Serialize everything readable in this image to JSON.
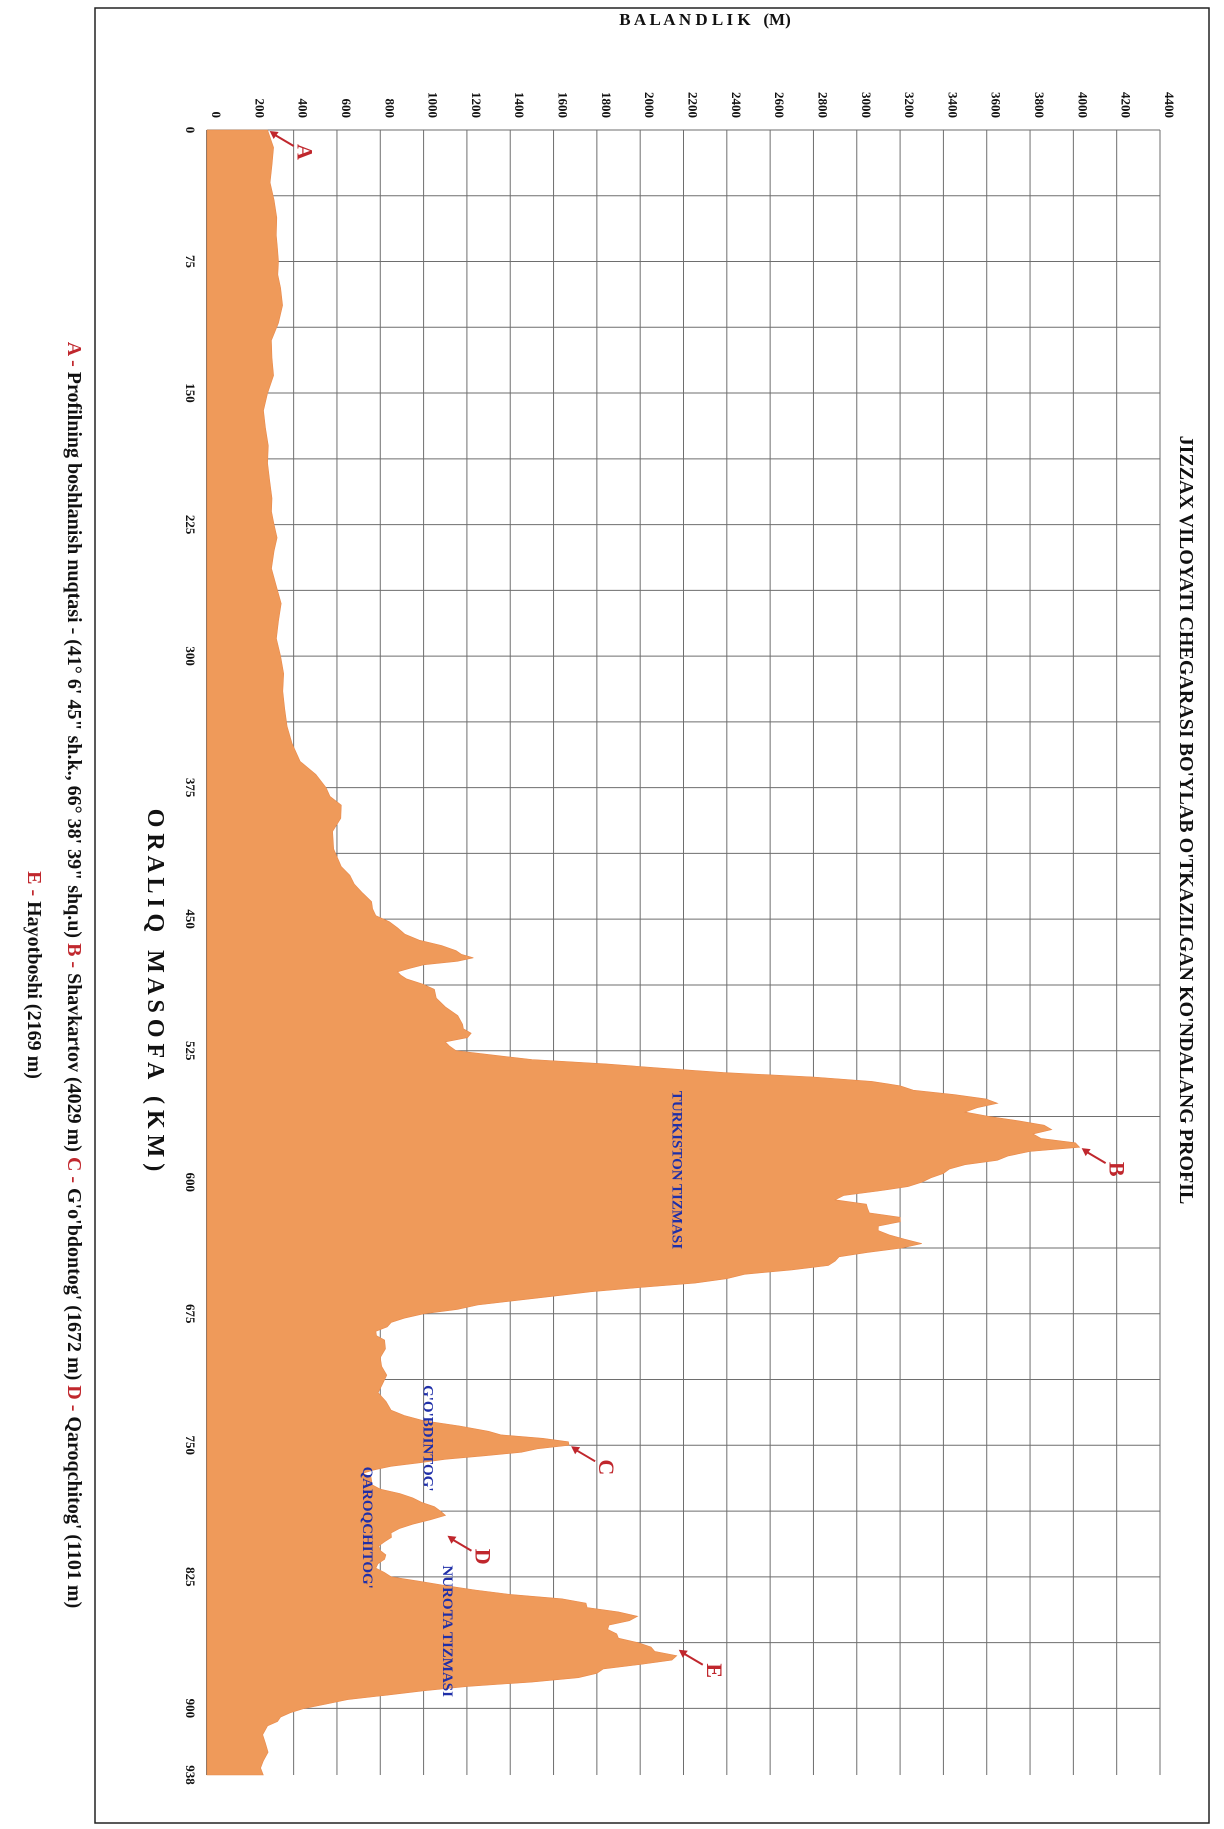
{
  "chart_data": {
    "type": "area",
    "title": "JIZZAX VILOYATI CHEGARASI BO'YLAB O'TKAZILGAN KO'NDALANG PROFIL",
    "xlabel": "O R A L I Q   M A S O F A   ( K M )",
    "ylabel": "B A L A N D L I K   (M)",
    "xlim": [
      0,
      938
    ],
    "ylim": [
      0,
      4400
    ],
    "x_ticks": [
      "0",
      "75",
      "150",
      "225",
      "300",
      "375",
      "450",
      "525",
      "600",
      "675",
      "750",
      "825",
      "900",
      "938"
    ],
    "x_tick_values": [
      0,
      75,
      150,
      225,
      300,
      375,
      450,
      525,
      600,
      675,
      750,
      825,
      900,
      938
    ],
    "y_ticks": [
      "0",
      "200",
      "400",
      "600",
      "800",
      "1000",
      "1200",
      "1400",
      "1600",
      "1800",
      "2000",
      "2200",
      "2400",
      "2600",
      "2800",
      "3000",
      "3200",
      "3400",
      "3600",
      "3800",
      "4000",
      "4200",
      "4400"
    ],
    "y_tick_values": [
      0,
      200,
      400,
      600,
      800,
      1000,
      1200,
      1400,
      1600,
      1800,
      2000,
      2200,
      2400,
      2600,
      2800,
      3000,
      3200,
      3400,
      3600,
      3800,
      4000,
      4200,
      4400
    ],
    "grid": true,
    "fill_color": "#EF9A5A",
    "grid_color": "#6E6E6E",
    "annotation_color": "#C0272D",
    "region_label_color": "#1F2FA8",
    "series": [
      {
        "x": [
          0,
          20,
          40,
          60,
          75,
          90,
          110,
          130,
          150,
          170,
          190,
          210,
          225,
          240,
          260,
          280,
          300,
          320,
          340,
          360,
          375,
          385,
          400,
          420,
          430,
          440,
          448,
          455,
          462,
          468,
          472,
          476,
          480,
          484,
          490,
          500,
          510,
          515,
          520,
          525,
          530,
          535,
          540,
          545,
          550,
          555,
          560,
          565,
          570,
          575,
          580,
          585,
          590,
          595,
          600,
          605,
          610,
          615,
          620,
          625,
          630,
          635,
          640,
          645,
          650,
          655,
          660,
          665,
          670,
          675,
          680,
          685,
          690,
          700,
          710,
          720,
          730,
          736,
          742,
          746,
          750,
          754,
          758,
          762,
          766,
          770,
          775,
          780,
          785,
          790,
          795,
          800,
          805,
          810,
          815,
          820,
          825,
          830,
          835,
          840,
          845,
          850,
          855,
          860,
          865,
          870,
          875,
          880,
          885,
          890,
          895,
          900,
          905,
          910,
          920,
          930,
          938
        ],
        "y": [
          280,
          300,
          310,
          320,
          330,
          340,
          330,
          300,
          280,
          270,
          280,
          300,
          310,
          310,
          320,
          330,
          340,
          350,
          370,
          430,
          550,
          620,
          580,
          620,
          680,
          760,
          780,
          880,
          980,
          1150,
          1230,
          1000,
          880,
          920,
          1050,
          1100,
          1180,
          1220,
          1100,
          1150,
          1500,
          2100,
          2800,
          3200,
          3450,
          3650,
          3500,
          3750,
          3900,
          3850,
          4029,
          3700,
          3500,
          3400,
          3300,
          3100,
          2900,
          3050,
          3200,
          3100,
          3150,
          3300,
          3050,
          2900,
          2700,
          2400,
          2000,
          1600,
          1250,
          1000,
          850,
          780,
          820,
          800,
          830,
          790,
          850,
          1000,
          1300,
          1550,
          1672,
          1450,
          1100,
          850,
          720,
          760,
          800,
          950,
          1050,
          1101,
          950,
          850,
          820,
          800,
          820,
          780,
          850,
          1100,
          1400,
          1750,
          1900,
          1950,
          1850,
          1900,
          2050,
          2169,
          2000,
          1800,
          1500,
          1000,
          650,
          450,
          340,
          280,
          270,
          260,
          260
        ]
      }
    ],
    "annotations": [
      {
        "letter": "A",
        "x": 0,
        "y": 280
      },
      {
        "letter": "B",
        "x": 580,
        "y": 4029
      },
      {
        "letter": "C",
        "x": 750,
        "y": 1672
      },
      {
        "letter": "D",
        "x": 801,
        "y": 1101
      },
      {
        "letter": "E",
        "x": 866,
        "y": 2169
      }
    ],
    "region_labels": [
      {
        "text": "TURKISTON TIZMASI",
        "x": 593,
        "y": 2150
      },
      {
        "text": "G'O'BDINTOG'",
        "x": 746,
        "y": 1000
      },
      {
        "text": "QAROQCHITOG'",
        "x": 797,
        "y": 720
      },
      {
        "text": "NUROTA TIZMASI",
        "x": 856,
        "y": 1090
      }
    ]
  },
  "legend": {
    "line1_parts": [
      {
        "key": "A",
        "sep": " - ",
        "text": "Profilning boshlanish nuqtasi - (41° 6' 45\" sh.k., 66° 38' 39\" shq.u)"
      },
      {
        "key": "B",
        "sep": " - ",
        "text": "Shavkartov (4029 m)"
      },
      {
        "key": "C",
        "sep": " - ",
        "text": "G'o'bdontog' (1672 m)"
      },
      {
        "key": "D",
        "sep": " - ",
        "text": "Qaroqchitog' (1101 m)"
      }
    ],
    "line2_parts": [
      {
        "key": "E",
        "sep": " - ",
        "text": "Hayotboshi (2169 m)"
      }
    ]
  }
}
